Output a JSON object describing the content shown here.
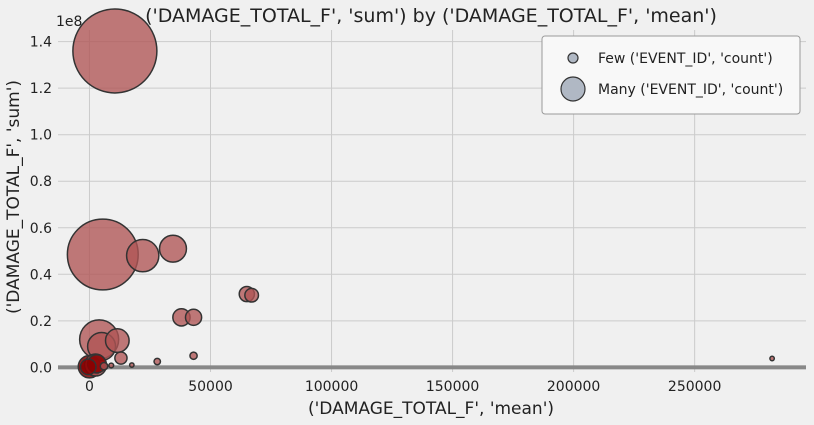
{
  "chart_data": {
    "type": "scatter",
    "title": "('DAMAGE_TOTAL_F', 'sum') by ('DAMAGE_TOTAL_F', 'mean')",
    "xlabel": "('DAMAGE_TOTAL_F', 'mean')",
    "ylabel": "('DAMAGE_TOTAL_F', 'sum')",
    "y_offset_text": "1e8",
    "xlim": [
      -13000,
      296000
    ],
    "ylim": [
      -2000000,
      145000000
    ],
    "xticks": [
      0,
      50000,
      100000,
      150000,
      200000,
      250000
    ],
    "xtick_labels": [
      "0",
      "50000",
      "100000",
      "150000",
      "200000",
      "250000"
    ],
    "yticks": [
      0,
      20000000,
      40000000,
      60000000,
      80000000,
      100000000,
      120000000,
      140000000
    ],
    "ytick_labels": [
      "0.0",
      "0.2",
      "0.4",
      "0.6",
      "0.8",
      "1.0",
      "1.2",
      "1.4"
    ],
    "grid": true,
    "legend_position": "top-right",
    "legend": [
      {
        "label": "Few ('EVENT_ID', 'count')",
        "size": "small"
      },
      {
        "label": "Many ('EVENT_ID', 'count')",
        "size": "large"
      }
    ],
    "colors": {
      "marker_fill": "#b05555",
      "marker_dark_fill": "#8b0000",
      "marker_edge": "#333333",
      "legend_marker_fill": "#b0b8c4",
      "zero_band": "#888888",
      "grid": "#cbcbcb",
      "background": "#f0f0f0"
    },
    "points": [
      {
        "x": 10500,
        "y": 136000000,
        "count": 19000
      },
      {
        "x": 5500,
        "y": 48500000,
        "count": 13500
      },
      {
        "x": 22000,
        "y": 48000000,
        "count": 2800
      },
      {
        "x": 34500,
        "y": 51000000,
        "count": 1950
      },
      {
        "x": 4000,
        "y": 12000000,
        "count": 4100
      },
      {
        "x": 11500,
        "y": 11500000,
        "count": 1500
      },
      {
        "x": 5000,
        "y": 9000000,
        "count": 2100
      },
      {
        "x": 38000,
        "y": 21500000,
        "count": 800
      },
      {
        "x": 43000,
        "y": 21500000,
        "count": 700
      },
      {
        "x": 65000,
        "y": 31500000,
        "count": 620
      },
      {
        "x": 67000,
        "y": 31000000,
        "count": 500
      },
      {
        "x": 13000,
        "y": 4000000,
        "count": 400
      },
      {
        "x": 28000,
        "y": 2500000,
        "count": 110
      },
      {
        "x": 43000,
        "y": 5000000,
        "count": 140
      },
      {
        "x": 17500,
        "y": 1000000,
        "count": 40
      },
      {
        "x": 282000,
        "y": 3800000,
        "count": 35
      },
      {
        "x": 0,
        "y": 300000,
        "count": 1350,
        "dark": true
      },
      {
        "x": 2500,
        "y": 1000000,
        "count": 1300
      },
      {
        "x": 3000,
        "y": 1500000,
        "count": 900,
        "dark": true
      },
      {
        "x": -500,
        "y": 200000,
        "count": 650,
        "dark": true
      },
      {
        "x": 6000,
        "y": 500000,
        "count": 150
      },
      {
        "x": 9000,
        "y": 800000,
        "count": 60
      }
    ]
  }
}
